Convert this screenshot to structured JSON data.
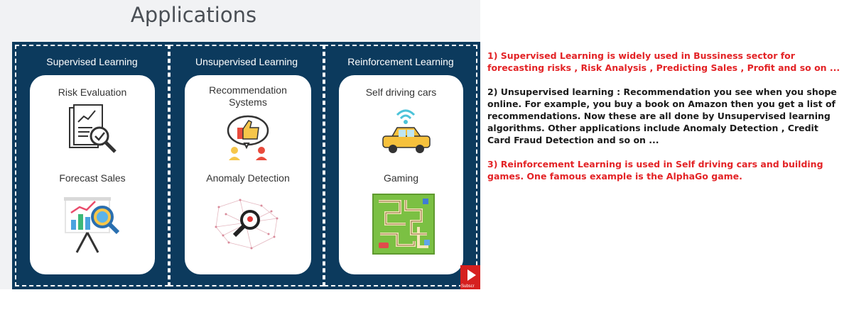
{
  "slide": {
    "title": "Applications",
    "columns": [
      {
        "heading": "Supervised Learning",
        "top_item": "Risk Evaluation",
        "top_icon": "risk-evaluation-document-magnifier-icon",
        "bottom_item": "Forecast Sales",
        "bottom_icon": "forecast-sales-chart-board-icon"
      },
      {
        "heading": "Unsupervised Learning",
        "top_item_line1": "Recommendation",
        "top_item_line2": "Systems",
        "top_icon": "recommendation-thumbs-up-people-icon",
        "bottom_item": "Anomaly Detection",
        "bottom_icon": "anomaly-detection-magnifier-icon"
      },
      {
        "heading": "Reinforcement Learning",
        "top_item": "Self driving cars",
        "top_icon": "self-driving-car-icon",
        "bottom_item": "Gaming",
        "bottom_icon": "maze-board-game-icon"
      }
    ],
    "subscribe_label": "Subscr"
  },
  "notes": {
    "supervised": "1) Supervised Learning is widely used in Bussiness sector for forecasting risks , Risk Analysis , Predicting Sales , Profit and so on ...",
    "unsupervised": "2) Unsupervised learning : Recommendation you see when you shope online. For example, you buy a book on Amazon then you get a list of recommendations. Now these are all done by Unsupervised learning algorithms. Other applications include Anomaly Detection , Credit Card Fraud Detection and so on ...",
    "reinforcement": "3) Reinforcement Learning is used in Self driving cars and building games. One famous example is the AlphaGo game."
  },
  "colors": {
    "board": "#0c3a5d",
    "note_red": "#e32326",
    "note_black": "#1b1b1b",
    "subscribe_red": "#d6201f"
  }
}
